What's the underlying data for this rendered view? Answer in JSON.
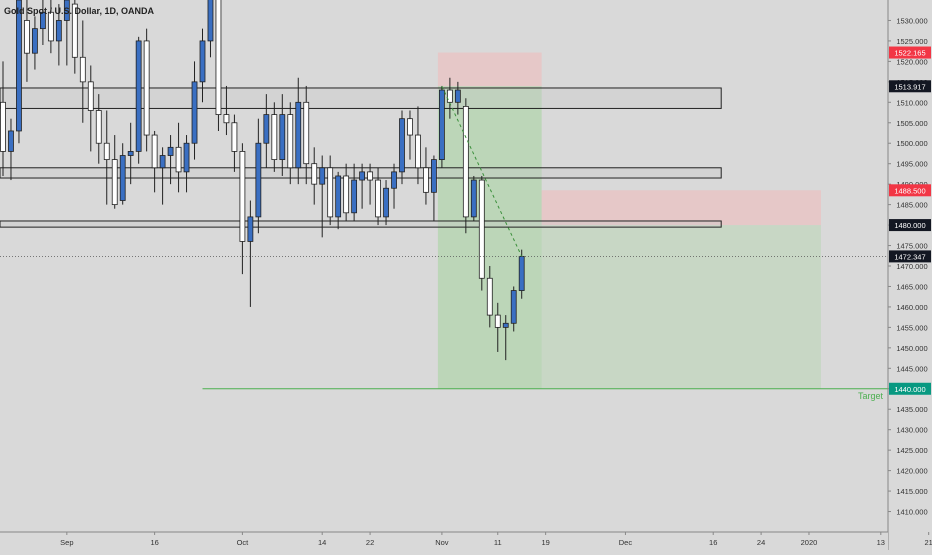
{
  "chart_data": {
    "type": "candlestick",
    "title": "Gold Spot / U.S. Dollar, 1D, OANDA",
    "ylim": [
      1405,
      1535
    ],
    "y_ticks": [
      1410,
      1415,
      1420,
      1425,
      1430,
      1435,
      1440,
      1445,
      1450,
      1455,
      1460,
      1465,
      1470,
      1475,
      1480,
      1485,
      1490,
      1495,
      1500,
      1505,
      1510,
      1515,
      1520,
      1525,
      1530
    ],
    "x_ticks": [
      {
        "label": "Sep",
        "index": 8
      },
      {
        "label": "16",
        "index": 19
      },
      {
        "label": "Oct",
        "index": 30
      },
      {
        "label": "14",
        "index": 40
      },
      {
        "label": "22",
        "index": 46
      },
      {
        "label": "Nov",
        "index": 55
      },
      {
        "label": "11",
        "index": 62
      },
      {
        "label": "19",
        "index": 68
      },
      {
        "label": "Dec",
        "index": 78
      },
      {
        "label": "16",
        "index": 89
      },
      {
        "label": "24",
        "index": 95
      },
      {
        "label": "2020",
        "index": 101
      },
      {
        "label": "13",
        "index": 110
      },
      {
        "label": "21",
        "index": 116
      }
    ],
    "candles": [
      {
        "o": 1510,
        "h": 1520,
        "l": 1492,
        "c": 1498
      },
      {
        "o": 1498,
        "h": 1506,
        "l": 1491,
        "c": 1503
      },
      {
        "o": 1503,
        "h": 1538,
        "l": 1500,
        "c": 1535
      },
      {
        "o": 1530,
        "h": 1536,
        "l": 1515,
        "c": 1522
      },
      {
        "o": 1522,
        "h": 1531,
        "l": 1518,
        "c": 1528
      },
      {
        "o": 1528,
        "h": 1538,
        "l": 1524,
        "c": 1532
      },
      {
        "o": 1532,
        "h": 1536,
        "l": 1522,
        "c": 1525
      },
      {
        "o": 1525,
        "h": 1534,
        "l": 1519,
        "c": 1530
      },
      {
        "o": 1530,
        "h": 1537,
        "l": 1519,
        "c": 1535
      },
      {
        "o": 1534,
        "h": 1542,
        "l": 1517,
        "c": 1521
      },
      {
        "o": 1521,
        "h": 1530,
        "l": 1505,
        "c": 1515
      },
      {
        "o": 1515,
        "h": 1519,
        "l": 1498,
        "c": 1508
      },
      {
        "o": 1508,
        "h": 1512,
        "l": 1495,
        "c": 1500
      },
      {
        "o": 1500,
        "h": 1508,
        "l": 1485,
        "c": 1496
      },
      {
        "o": 1496,
        "h": 1502,
        "l": 1484,
        "c": 1485
      },
      {
        "o": 1486,
        "h": 1500,
        "l": 1485,
        "c": 1497
      },
      {
        "o": 1497,
        "h": 1505,
        "l": 1490,
        "c": 1498
      },
      {
        "o": 1498,
        "h": 1526,
        "l": 1495,
        "c": 1525
      },
      {
        "o": 1525,
        "h": 1528,
        "l": 1498,
        "c": 1502
      },
      {
        "o": 1502,
        "h": 1503,
        "l": 1488,
        "c": 1494
      },
      {
        "o": 1494,
        "h": 1499,
        "l": 1485,
        "c": 1497
      },
      {
        "o": 1497,
        "h": 1502,
        "l": 1490,
        "c": 1499
      },
      {
        "o": 1499,
        "h": 1505,
        "l": 1488,
        "c": 1493
      },
      {
        "o": 1493,
        "h": 1502,
        "l": 1488,
        "c": 1500
      },
      {
        "o": 1500,
        "h": 1520,
        "l": 1496,
        "c": 1515
      },
      {
        "o": 1515,
        "h": 1528,
        "l": 1510,
        "c": 1525
      },
      {
        "o": 1525,
        "h": 1550,
        "l": 1521,
        "c": 1545
      },
      {
        "o": 1545,
        "h": 1551,
        "l": 1503,
        "c": 1507
      },
      {
        "o": 1507,
        "h": 1514,
        "l": 1502,
        "c": 1505
      },
      {
        "o": 1505,
        "h": 1507,
        "l": 1493,
        "c": 1498
      },
      {
        "o": 1498,
        "h": 1500,
        "l": 1468,
        "c": 1476
      },
      {
        "o": 1476,
        "h": 1486,
        "l": 1460,
        "c": 1482
      },
      {
        "o": 1482,
        "h": 1506,
        "l": 1478,
        "c": 1500
      },
      {
        "o": 1500,
        "h": 1512,
        "l": 1494,
        "c": 1507
      },
      {
        "o": 1507,
        "h": 1510,
        "l": 1493,
        "c": 1496
      },
      {
        "o": 1496,
        "h": 1512,
        "l": 1492,
        "c": 1507
      },
      {
        "o": 1507,
        "h": 1510,
        "l": 1490,
        "c": 1494
      },
      {
        "o": 1494,
        "h": 1516,
        "l": 1490,
        "c": 1510
      },
      {
        "o": 1510,
        "h": 1514,
        "l": 1490,
        "c": 1495
      },
      {
        "o": 1495,
        "h": 1499,
        "l": 1485,
        "c": 1490
      },
      {
        "o": 1490,
        "h": 1497,
        "l": 1477,
        "c": 1494
      },
      {
        "o": 1494,
        "h": 1497,
        "l": 1480,
        "c": 1482
      },
      {
        "o": 1482,
        "h": 1493,
        "l": 1479,
        "c": 1492
      },
      {
        "o": 1492,
        "h": 1495,
        "l": 1481,
        "c": 1483
      },
      {
        "o": 1483,
        "h": 1495,
        "l": 1481,
        "c": 1491
      },
      {
        "o": 1491,
        "h": 1495,
        "l": 1484,
        "c": 1493
      },
      {
        "o": 1493,
        "h": 1495,
        "l": 1485,
        "c": 1491
      },
      {
        "o": 1491,
        "h": 1494,
        "l": 1480,
        "c": 1482
      },
      {
        "o": 1482,
        "h": 1491,
        "l": 1480,
        "c": 1489
      },
      {
        "o": 1489,
        "h": 1495,
        "l": 1484,
        "c": 1493
      },
      {
        "o": 1493,
        "h": 1508,
        "l": 1490,
        "c": 1506
      },
      {
        "o": 1506,
        "h": 1508,
        "l": 1496,
        "c": 1502
      },
      {
        "o": 1502,
        "h": 1509,
        "l": 1490,
        "c": 1494
      },
      {
        "o": 1494,
        "h": 1499,
        "l": 1485,
        "c": 1488
      },
      {
        "o": 1488,
        "h": 1497,
        "l": 1481,
        "c": 1496
      },
      {
        "o": 1496,
        "h": 1514,
        "l": 1494,
        "c": 1513
      },
      {
        "o": 1513,
        "h": 1516,
        "l": 1506,
        "c": 1510
      },
      {
        "o": 1510,
        "h": 1515,
        "l": 1507,
        "c": 1513
      },
      {
        "o": 1509,
        "h": 1511,
        "l": 1478,
        "c": 1482
      },
      {
        "o": 1482,
        "h": 1492,
        "l": 1481,
        "c": 1491
      },
      {
        "o": 1491,
        "h": 1492,
        "l": 1464,
        "c": 1467
      },
      {
        "o": 1467,
        "h": 1470,
        "l": 1455,
        "c": 1458
      },
      {
        "o": 1458,
        "h": 1461,
        "l": 1449,
        "c": 1455
      },
      {
        "o": 1455,
        "h": 1458,
        "l": 1447,
        "c": 1456
      },
      {
        "o": 1456,
        "h": 1465,
        "l": 1454,
        "c": 1464
      },
      {
        "o": 1464,
        "h": 1474,
        "l": 1462,
        "c": 1472.347
      }
    ],
    "zones": [
      {
        "top": 1513.5,
        "bottom": 1508.5,
        "start": -2,
        "end": 90
      },
      {
        "top": 1494,
        "bottom": 1491.5,
        "start": -2,
        "end": 90
      },
      {
        "top": 1481,
        "bottom": 1479.5,
        "start": -2,
        "end": 90
      }
    ],
    "positions": [
      {
        "entry": 1513.917,
        "stop": 1522.165,
        "target": 1440.0,
        "start": 55,
        "end": 67
      },
      {
        "entry": 1480.0,
        "stop": 1488.5,
        "target": 1440.0,
        "start": 68,
        "end": 102
      }
    ],
    "current_price": 1472.347,
    "target_level": 1440.0,
    "target_text": "Target",
    "price_labels": [
      {
        "text": "1522.165",
        "value": 1522.165,
        "color": "#f23645"
      },
      {
        "text": "1513.917",
        "value": 1513.917,
        "color": "#131722"
      },
      {
        "text": "1488.500",
        "value": 1488.5,
        "color": "#f23645"
      },
      {
        "text": "1480.000",
        "value": 1480.0,
        "color": "#131722"
      },
      {
        "text": "1472.347",
        "value": 1472.347,
        "color": "#131722"
      },
      {
        "text": "1440.000",
        "value": 1440.0,
        "color": "#089981"
      }
    ],
    "colors": {
      "up_candle": "#3a6fc2",
      "down_candle": "#ffffff",
      "candle_border": "#222222",
      "profit_zone": "#a9d3a1",
      "loss_zone": "#f0b9b9",
      "target_line": "#4caf50",
      "background": "#d9d9d9"
    }
  }
}
